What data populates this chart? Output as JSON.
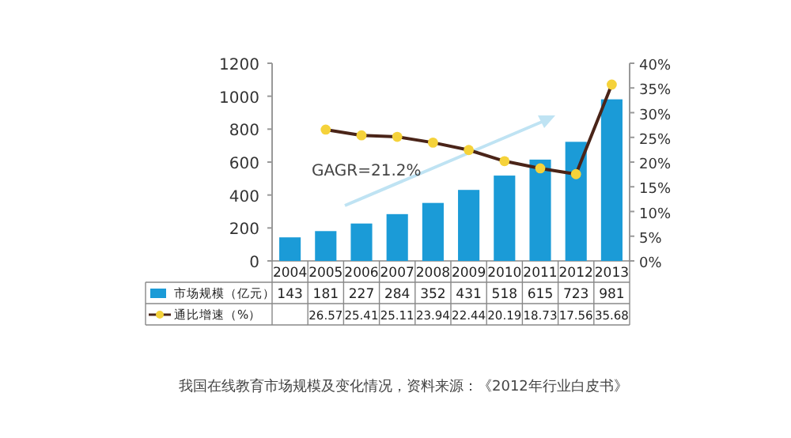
{
  "chart_data": {
    "type": "bar",
    "categories": [
      "2004",
      "2005",
      "2006",
      "2007",
      "2008",
      "2009",
      "2010",
      "2011",
      "2012",
      "2013"
    ],
    "series": [
      {
        "name": "市场规模（亿元）",
        "color": "#1b9bd7",
        "values": [
          143,
          181,
          227,
          284,
          352,
          431,
          518,
          615,
          723,
          981
        ]
      },
      {
        "name": "通比增速（%）",
        "type": "line",
        "axis": "y2",
        "color": "#4a2418",
        "marker": "circle",
        "values": [
          null,
          26.57,
          25.41,
          25.11,
          23.94,
          22.44,
          20.19,
          18.73,
          17.56,
          35.68
        ]
      }
    ],
    "ylim": [
      0,
      1200
    ],
    "yticks": [
      0,
      200,
      400,
      600,
      800,
      1000,
      1200
    ],
    "y2lim": [
      0,
      40
    ],
    "y2ticks": [
      {
        "value": 0,
        "label": "0%"
      },
      {
        "value": 5,
        "label": "5%"
      },
      {
        "value": 10,
        "label": "10%"
      },
      {
        "value": 15,
        "label": "15%"
      },
      {
        "value": 20,
        "label": "20%"
      },
      {
        "value": 25,
        "label": "25%"
      },
      {
        "value": 30,
        "label": "30%"
      },
      {
        "value": 35,
        "label": "35%"
      },
      {
        "value": 40,
        "label": "40%"
      }
    ],
    "data_labels": true,
    "legend": "bottom",
    "annotations": [
      "GAGR=21.2%",
      "我国在线教育市场规模及变化情况，资料来源：《2012年行业白皮书》"
    ]
  }
}
